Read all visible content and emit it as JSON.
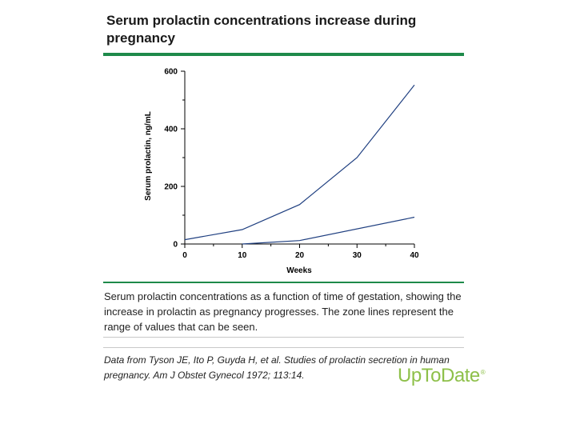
{
  "figure": {
    "title": "Serum prolactin concentrations increase during pregnancy",
    "caption": "Serum prolactin concentrations as a function of time of gestation, showing the increase in prolactin as pregnancy progresses. The zone lines represent the range of values that can be seen.",
    "citation": "Data from Tyson JE, Ito P, Guyda H, et al. Studies of prolactin secretion in human pregnancy. Am J Obstet Gynecol 1972; 113:14.",
    "brand": "UpToDate",
    "brand_mark": "®"
  },
  "colors": {
    "accent": "#1e8a4a",
    "series": "#1f3f80",
    "brand": "#8ec04a",
    "axis": "#000000"
  },
  "chart_data": {
    "type": "line",
    "title": "",
    "xlabel": "Weeks",
    "ylabel": "Serum prolactin, ng/mL",
    "xlim": [
      0,
      40
    ],
    "ylim": [
      0,
      600
    ],
    "xticks": [
      0,
      10,
      20,
      30,
      40
    ],
    "yticks": [
      0,
      200,
      400,
      600
    ],
    "yminor": [
      100,
      300,
      500
    ],
    "grid": false,
    "legend": "none",
    "series": [
      {
        "name": "upper zone line",
        "x": [
          0,
          10,
          20,
          30,
          40
        ],
        "values": [
          15,
          50,
          137,
          300,
          552
        ]
      },
      {
        "name": "lower zone line",
        "x": [
          10,
          20,
          40
        ],
        "values": [
          0,
          12,
          93
        ]
      }
    ]
  }
}
